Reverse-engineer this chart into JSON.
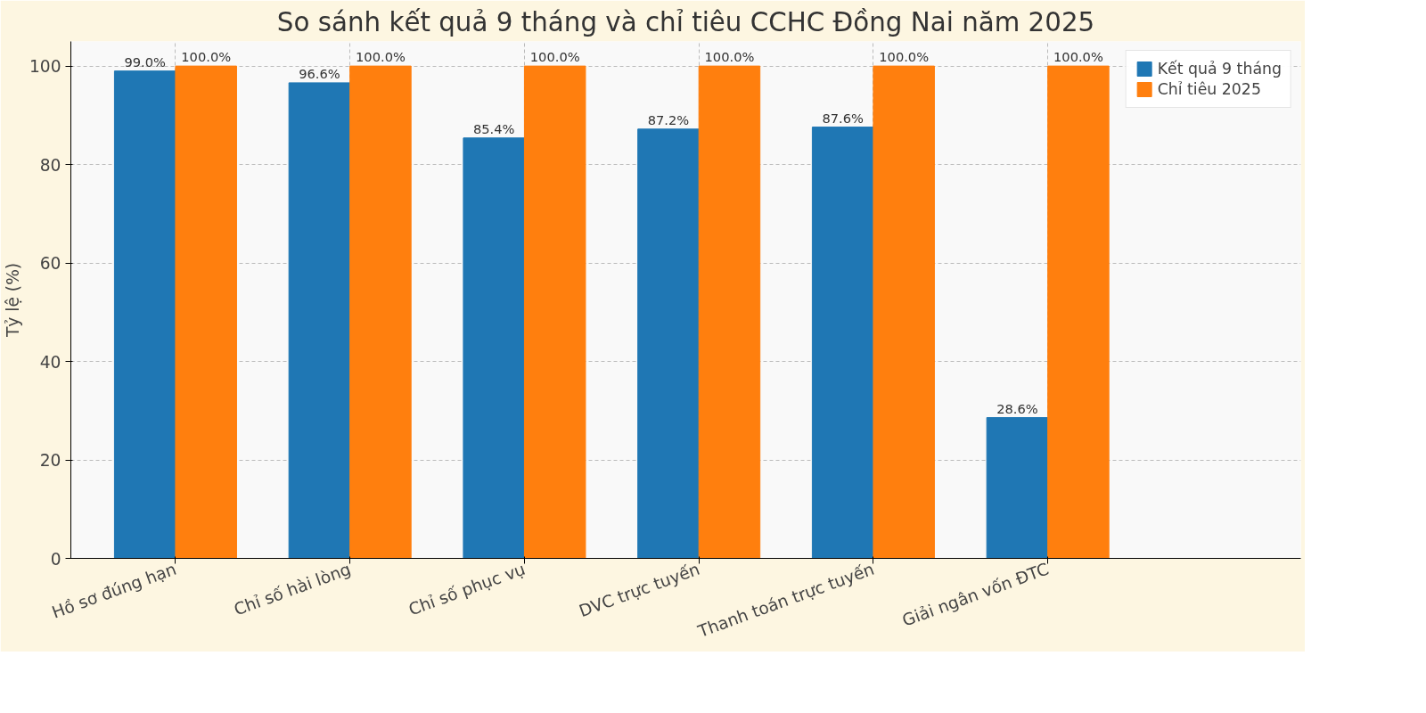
{
  "chart_data": {
    "type": "bar",
    "title": "So sánh kết quả 9 tháng và chỉ tiêu CCHC Đồng Nai năm 2025",
    "ylabel": "Tỷ lệ (%)",
    "categories": [
      "Hồ sơ đúng hạn",
      "Chỉ số hài lòng",
      "Chỉ số phục vụ",
      "DVC trực tuyến",
      "Thanh toán trực tuyến",
      "Giải ngân vốn ĐTC"
    ],
    "series": [
      {
        "name": "Kết quả 9 tháng",
        "color": "#1f77b4",
        "values": [
          99.0,
          96.6,
          85.4,
          87.2,
          87.6,
          28.6
        ],
        "value_labels": [
          "99.0%",
          "96.6%",
          "85.4%",
          "87.2%",
          "87.6%",
          "28.6%"
        ]
      },
      {
        "name": "Chỉ tiêu 2025",
        "color": "#ff7f0e",
        "values": [
          100.0,
          100.0,
          100.0,
          100.0,
          100.0,
          100.0
        ],
        "value_labels": [
          "100.0%",
          "100.0%",
          "100.0%",
          "100.0%",
          "100.0%",
          "100.0%"
        ]
      }
    ],
    "ylim": [
      0,
      105
    ],
    "yticks": [
      0,
      20,
      40,
      60,
      80,
      100
    ],
    "grid": true,
    "legend": "top right"
  }
}
